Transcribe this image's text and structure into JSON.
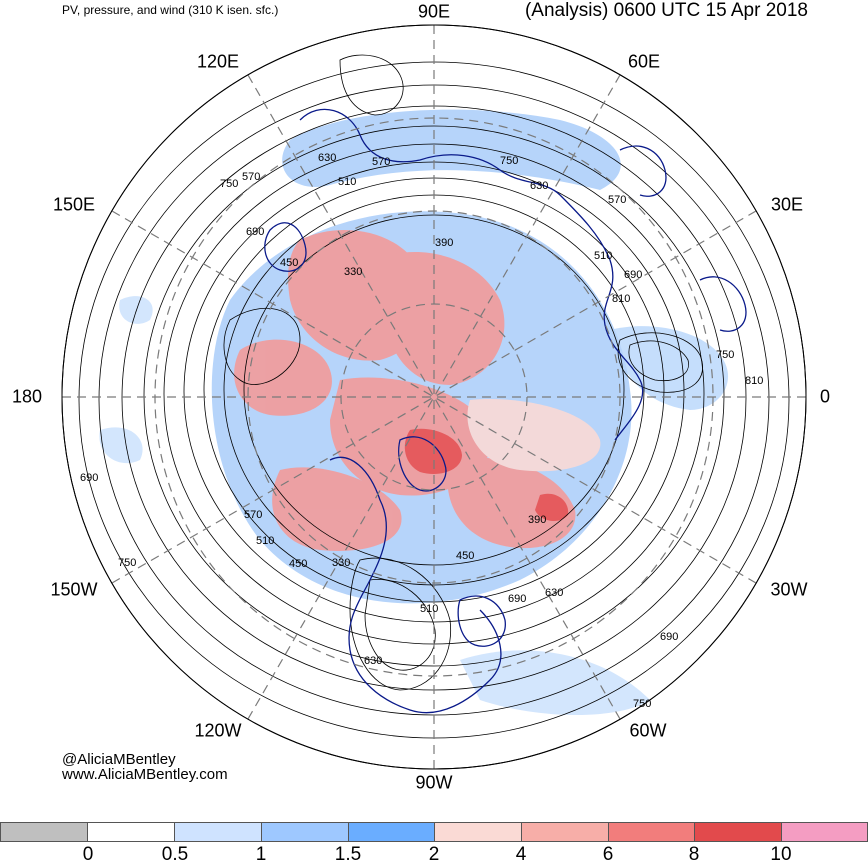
{
  "header": {
    "title_left": "PV, pressure, and wind (310 K isen. sfc.)",
    "title_right": "(Analysis) 0600 UTC 15 Apr 2018"
  },
  "longitude_labels": {
    "lon_90e": "90E",
    "lon_120e": "120E",
    "lon_60e": "60E",
    "lon_150e": "150E",
    "lon_30e": "30E",
    "lon_180": "180",
    "lon_0": "0",
    "lon_150w": "150W",
    "lon_30w": "30W",
    "lon_120w": "120W",
    "lon_60w": "60W",
    "lon_90w": "90W"
  },
  "credits": {
    "handle": "@AliciaMBentley",
    "website": "www.AliciaMBentley.com"
  },
  "contour_labels": [
    "630",
    "570",
    "510",
    "750",
    "690",
    "450",
    "330",
    "390",
    "750",
    "570",
    "510",
    "690",
    "810",
    "750",
    "810",
    "690",
    "570",
    "510",
    "450",
    "330",
    "390",
    "450",
    "630",
    "690",
    "630",
    "750",
    "690",
    "570",
    "510",
    "630",
    "750"
  ],
  "colorbar": {
    "ticks": [
      "0",
      "0.5",
      "1",
      "1.5",
      "2",
      "4",
      "6",
      "8",
      "10"
    ],
    "colors": [
      "#bfbfbf",
      "#ffffff",
      "#cfe3ff",
      "#9ec8ff",
      "#6aadff",
      "#fadad5",
      "#f7aea8",
      "#f27d7c",
      "#e24a4c",
      "#f49dc2"
    ]
  },
  "colors": {
    "coast": "#0a1a8a",
    "contour": "#000000",
    "grid": "#7a7a7a",
    "pv_blue": "#a9cdfa",
    "pv_red": "#f29b9a"
  }
}
